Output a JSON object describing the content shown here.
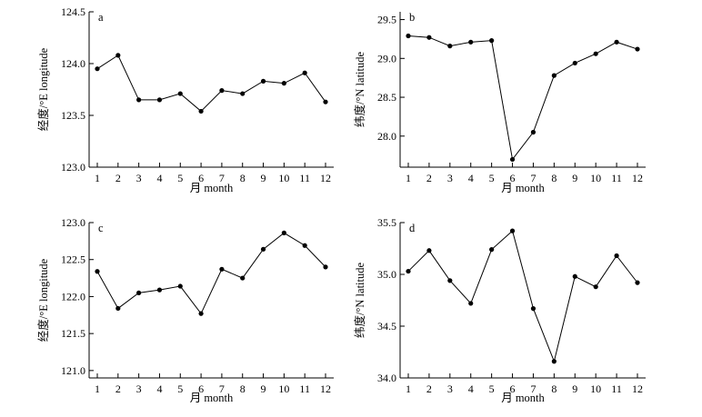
{
  "chart_data": [
    {
      "type": "line",
      "panel": "a",
      "xlabel": "月 month",
      "ylabel": "经度/°E longitude",
      "x": [
        1,
        2,
        3,
        4,
        5,
        6,
        7,
        8,
        9,
        10,
        11,
        12
      ],
      "series": [
        {
          "values": [
            123.95,
            124.08,
            123.65,
            123.65,
            123.71,
            123.54,
            123.74,
            123.71,
            123.83,
            123.81,
            123.91,
            123.63
          ]
        }
      ],
      "ylim": [
        123.0,
        124.5
      ],
      "yticks": [
        "123.0",
        "123.5",
        "124.0",
        "124.5"
      ],
      "xticks": [
        "1",
        "2",
        "3",
        "4",
        "5",
        "6",
        "7",
        "8",
        "9",
        "10",
        "11",
        "12"
      ],
      "grid": false
    },
    {
      "type": "line",
      "panel": "b",
      "xlabel": "月 month",
      "ylabel": "纬度/°N latitude",
      "x": [
        1,
        2,
        3,
        4,
        5,
        6,
        7,
        8,
        9,
        10,
        11,
        12
      ],
      "series": [
        {
          "values": [
            29.29,
            29.27,
            29.16,
            29.21,
            29.23,
            27.7,
            28.05,
            28.78,
            28.94,
            29.06,
            29.21,
            29.12
          ]
        }
      ],
      "ylim": [
        27.6,
        29.6
      ],
      "yticks": [
        "28.0",
        "28.5",
        "29.0",
        "29.5"
      ],
      "xticks": [
        "1",
        "2",
        "3",
        "4",
        "5",
        "6",
        "7",
        "8",
        "9",
        "10",
        "11",
        "12"
      ],
      "grid": false
    },
    {
      "type": "line",
      "panel": "c",
      "xlabel": "月 month",
      "ylabel": "经度/°E longitude",
      "x": [
        1,
        2,
        3,
        4,
        5,
        6,
        7,
        8,
        9,
        10,
        11,
        12
      ],
      "series": [
        {
          "values": [
            122.34,
            121.84,
            122.05,
            122.09,
            122.14,
            121.77,
            122.37,
            122.25,
            122.64,
            122.86,
            122.69,
            122.4
          ]
        }
      ],
      "ylim": [
        120.9,
        123.0
      ],
      "yticks": [
        "121.0",
        "121.5",
        "122.0",
        "122.5",
        "123.0"
      ],
      "xticks": [
        "1",
        "2",
        "3",
        "4",
        "5",
        "6",
        "7",
        "8",
        "9",
        "10",
        "11",
        "12"
      ],
      "grid": false
    },
    {
      "type": "line",
      "panel": "d",
      "xlabel": "月 month",
      "ylabel": "纬度/°N latitude",
      "x": [
        1,
        2,
        3,
        4,
        5,
        6,
        7,
        8,
        9,
        10,
        11,
        12
      ],
      "series": [
        {
          "values": [
            35.03,
            35.23,
            34.94,
            34.72,
            35.24,
            35.42,
            34.67,
            34.16,
            34.98,
            34.88,
            35.18,
            34.92
          ]
        }
      ],
      "ylim": [
        34.0,
        35.5
      ],
      "yticks": [
        "34.0",
        "34.5",
        "35.0",
        "35.5"
      ],
      "xticks": [
        "1",
        "2",
        "3",
        "4",
        "5",
        "6",
        "7",
        "8",
        "9",
        "10",
        "11",
        "12"
      ],
      "grid": false
    }
  ]
}
